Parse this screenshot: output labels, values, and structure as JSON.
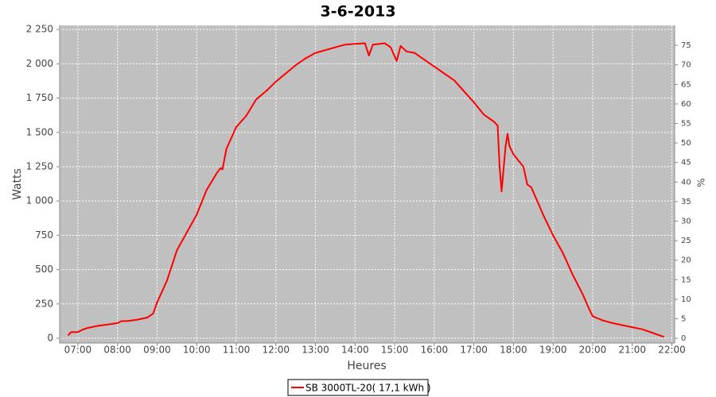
{
  "chart_data": {
    "type": "line",
    "title": "3-6-2013",
    "x_label": "Heures",
    "y_label": "Watts",
    "y2_label": "%",
    "x": [
      6.75,
      6.83,
      7.0,
      7.1,
      7.25,
      7.5,
      7.75,
      8.0,
      8.1,
      8.25,
      8.5,
      8.75,
      8.9,
      9.0,
      9.25,
      9.5,
      10.0,
      10.25,
      10.5,
      10.6,
      10.65,
      10.75,
      11.0,
      11.25,
      11.5,
      11.75,
      12.0,
      12.25,
      12.5,
      12.75,
      13.0,
      13.25,
      13.5,
      13.75,
      14.0,
      14.25,
      14.35,
      14.45,
      14.75,
      14.9,
      15.05,
      15.15,
      15.3,
      15.5,
      15.75,
      16.0,
      16.25,
      16.5,
      16.75,
      17.0,
      17.25,
      17.5,
      17.6,
      17.65,
      17.7,
      17.8,
      17.85,
      17.9,
      18.0,
      18.25,
      18.35,
      18.45,
      18.6,
      18.75,
      19.0,
      19.25,
      19.5,
      19.75,
      19.9,
      20.0,
      20.25,
      20.5,
      20.75,
      21.0,
      21.25,
      21.5,
      21.75,
      21.8
    ],
    "series": [
      {
        "name": "SB 3000TL-20( 17,1 kWh )",
        "color": "#ff0000",
        "values": [
          20,
          45,
          45,
          60,
          75,
          90,
          100,
          110,
          125,
          125,
          135,
          150,
          180,
          260,
          420,
          640,
          900,
          1080,
          1200,
          1240,
          1230,
          1380,
          1540,
          1620,
          1740,
          1800,
          1870,
          1930,
          1990,
          2040,
          2080,
          2100,
          2120,
          2140,
          2145,
          2150,
          2060,
          2140,
          2150,
          2120,
          2020,
          2130,
          2090,
          2080,
          2030,
          1980,
          1930,
          1880,
          1800,
          1720,
          1630,
          1580,
          1550,
          1250,
          1070,
          1400,
          1490,
          1400,
          1340,
          1250,
          1120,
          1100,
          1000,
          900,
          750,
          620,
          460,
          320,
          220,
          160,
          130,
          110,
          95,
          80,
          65,
          40,
          15,
          10
        ]
      }
    ],
    "xlim": [
      6.54,
      22.07
    ],
    "xticks": [
      {
        "value": 7,
        "label": "07:00"
      },
      {
        "value": 8,
        "label": "08:00"
      },
      {
        "value": 9,
        "label": "09:00"
      },
      {
        "value": 10,
        "label": "10:00"
      },
      {
        "value": 11,
        "label": "11:00"
      },
      {
        "value": 12,
        "label": "12:00"
      },
      {
        "value": 13,
        "label": "13:00"
      },
      {
        "value": 14,
        "label": "14:00"
      },
      {
        "value": 15,
        "label": "15:00"
      },
      {
        "value": 16,
        "label": "16:00"
      },
      {
        "value": 17,
        "label": "17:00"
      },
      {
        "value": 18,
        "label": "18:00"
      },
      {
        "value": 19,
        "label": "19:00"
      },
      {
        "value": 20,
        "label": "20:00"
      },
      {
        "value": 21,
        "label": "21:00"
      },
      {
        "value": 22,
        "label": "22:00"
      }
    ],
    "ylim": [
      -35,
      2280
    ],
    "yticks": [
      0,
      250,
      500,
      750,
      {
        "value": 1000,
        "label": "1 000"
      },
      {
        "value": 1250,
        "label": "1 250"
      },
      {
        "value": 1500,
        "label": "1 500"
      },
      {
        "value": 1750,
        "label": "1 750"
      },
      {
        "value": 2000,
        "label": "2 000"
      },
      {
        "value": 2250,
        "label": "2 250"
      }
    ],
    "y2lim": [
      -1.2,
      80.1
    ],
    "y2ticks": [
      0,
      5,
      10,
      15,
      20,
      25,
      30,
      35,
      40,
      45,
      50,
      55,
      60,
      65,
      70,
      75
    ],
    "grid": true
  }
}
